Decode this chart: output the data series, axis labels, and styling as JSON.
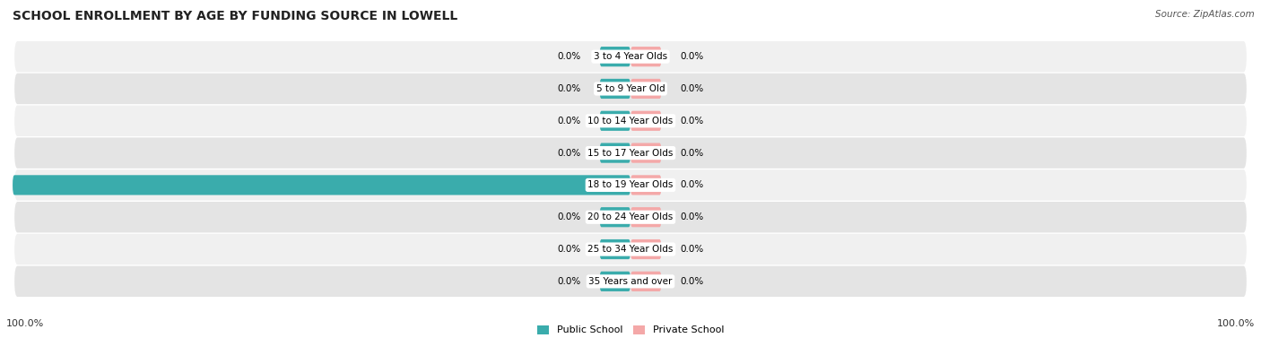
{
  "title": "SCHOOL ENROLLMENT BY AGE BY FUNDING SOURCE IN LOWELL",
  "source": "Source: ZipAtlas.com",
  "categories": [
    "3 to 4 Year Olds",
    "5 to 9 Year Old",
    "10 to 14 Year Olds",
    "15 to 17 Year Olds",
    "18 to 19 Year Olds",
    "20 to 24 Year Olds",
    "25 to 34 Year Olds",
    "35 Years and over"
  ],
  "public_values": [
    0.0,
    0.0,
    0.0,
    0.0,
    100.0,
    0.0,
    0.0,
    0.0
  ],
  "private_values": [
    0.0,
    0.0,
    0.0,
    0.0,
    0.0,
    0.0,
    0.0,
    0.0
  ],
  "public_color": "#3AACAC",
  "private_color": "#F4A8A8",
  "row_bg_light": "#F0F0F0",
  "row_bg_dark": "#E4E4E4",
  "title_fontsize": 10,
  "axis_max": 100.0,
  "legend_public": "Public School",
  "legend_private": "Private School",
  "bottom_left_label": "100.0%",
  "bottom_right_label": "100.0%",
  "stub_size": 5.0
}
